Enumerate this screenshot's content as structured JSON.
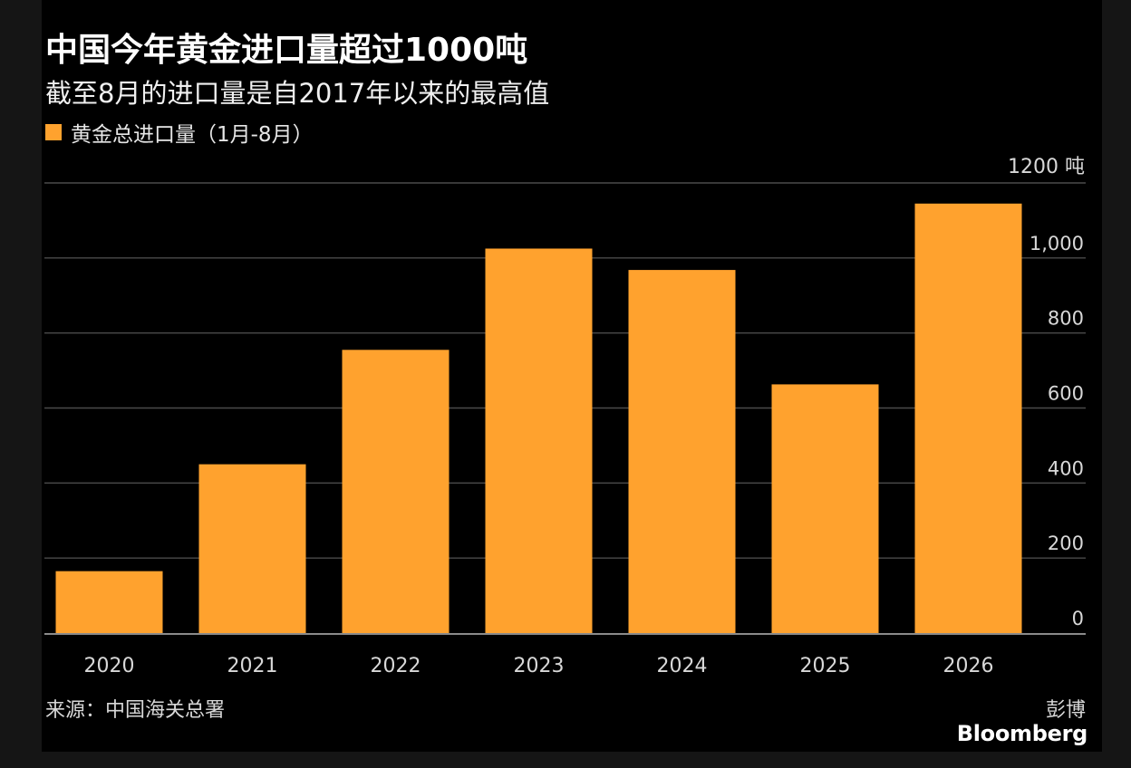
{
  "title": "中国今年黄金进口量超过1000吨",
  "subtitle": "截至8月的进口量是自2017年以来的最高值",
  "source": "来源：中国海关总署",
  "credit_cn": "彭博",
  "credit_en": "Bloomberg",
  "colors": {
    "bar": "#FFA22E",
    "background": "#000000",
    "grid": "#4a4a4a",
    "axis": "#8a8a8a"
  },
  "chart_data": {
    "type": "bar",
    "categories": [
      "2020",
      "2021",
      "2022",
      "2023",
      "2024",
      "2025",
      "2026"
    ],
    "series": [
      {
        "name": "黄金总进口量（1月-8月）",
        "values": [
          165,
          450,
          755,
          1025,
          968,
          663,
          1145
        ]
      }
    ],
    "ylim": [
      0,
      1200
    ],
    "yticks": [
      0,
      200,
      400,
      600,
      800,
      1000,
      1200
    ],
    "ytick_labels": [
      "0",
      "200",
      "400",
      "600",
      "800",
      "1,000",
      "1200 吨"
    ],
    "grid": true,
    "y_axis_position": "right",
    "legend_position": "top-left"
  }
}
